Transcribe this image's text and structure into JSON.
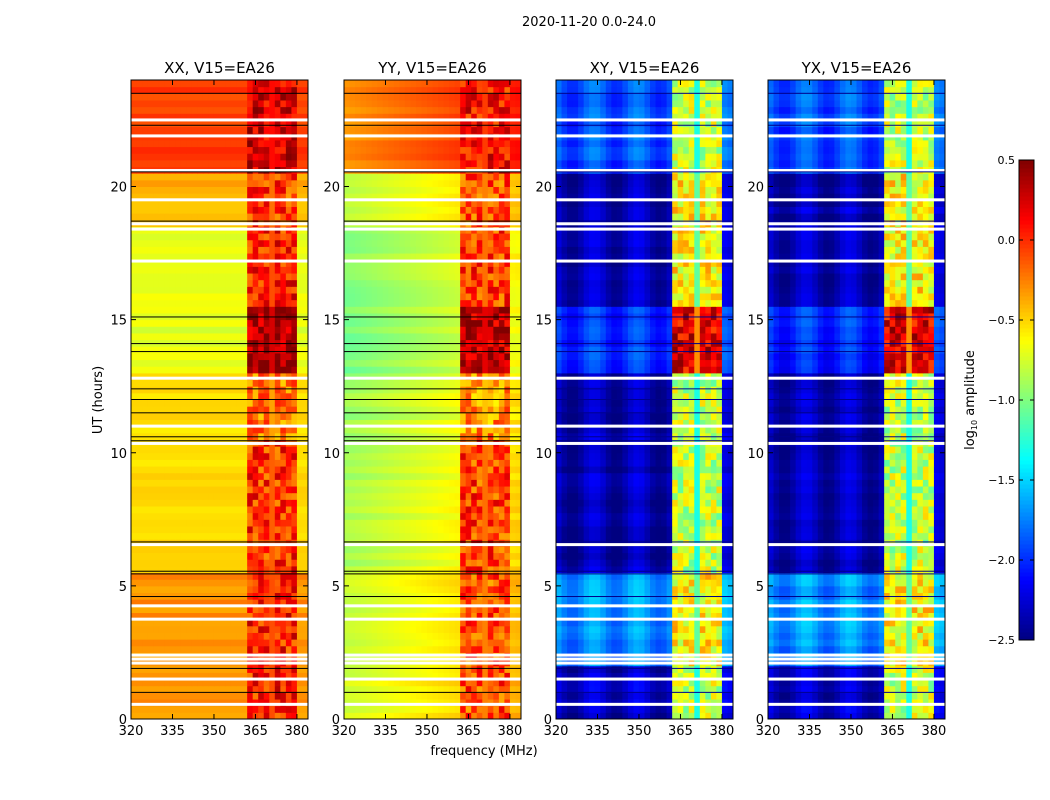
{
  "chart_data": {
    "type": "heatmap",
    "title": "2020-11-20 0.0-24.0",
    "xlabel": "frequency (MHz)",
    "ylabel": "UT (hours)",
    "xlim": [
      320,
      384
    ],
    "ylim": [
      0,
      24
    ],
    "xticks": [
      "320",
      "335",
      "350",
      "365",
      "380"
    ],
    "xtick_values": [
      320,
      335,
      350,
      365,
      380
    ],
    "yticks": [
      "0",
      "5",
      "10",
      "15",
      "20"
    ],
    "ytick_values": [
      0,
      5,
      10,
      15,
      20
    ],
    "colorbar": {
      "label": "log10 amplitude",
      "label_base": "log",
      "label_sub": "10",
      "label_rest": " amplitude",
      "range": [
        -2.5,
        0.5
      ],
      "ticks": [
        "0.5",
        "0.0",
        "−0.5",
        "−1.0",
        "−1.5",
        "−2.0",
        "−2.5"
      ],
      "tick_values": [
        0.5,
        0.0,
        -0.5,
        -1.0,
        -1.5,
        -2.0,
        -2.5
      ],
      "colormap": "jet"
    },
    "rfi_columns_mhz": [
      [
        361.5,
        365.5
      ],
      [
        366.5,
        370.5
      ],
      [
        371.5,
        375.5
      ],
      [
        376.5,
        380.5
      ]
    ],
    "flagged_white_ut": [
      0.55,
      1.5,
      2.1,
      2.25,
      2.4,
      3.75,
      4.25,
      6.55,
      10.35,
      11.0,
      12.8,
      17.2,
      18.4,
      18.6,
      19.5,
      20.6,
      21.9,
      22.5
    ],
    "black_line_ut": [
      1.0,
      1.9,
      4.6,
      5.45,
      5.55,
      6.65,
      10.45,
      10.6,
      11.5,
      12.0,
      12.4,
      13.8,
      14.1,
      15.1,
      18.7,
      20.55,
      22.3,
      23.5
    ],
    "panels": [
      {
        "title": "XX, V15=EA26",
        "kind": "parallel",
        "segments": [
          {
            "ut": [
              0,
              5.5
            ],
            "base": -0.3,
            "band": 0.05
          },
          {
            "ut": [
              5.5,
              10.5
            ],
            "base": -0.5,
            "band": 0.0
          },
          {
            "ut": [
              10.5,
              13
            ],
            "base": -0.55,
            "band": -0.2
          },
          {
            "ut": [
              13,
              15.5
            ],
            "base": -0.7,
            "band": 0.4
          },
          {
            "ut": [
              15.5,
              18.5
            ],
            "base": -0.7,
            "band": 0.05
          },
          {
            "ut": [
              18.5,
              20.5
            ],
            "base": -0.4,
            "band": -0.05
          },
          {
            "ut": [
              20.5,
              24
            ],
            "base": -0.05,
            "band": 0.25
          }
        ]
      },
      {
        "title": "YY, V15=EA26",
        "kind": "parallel",
        "segments": [
          {
            "ut": [
              0,
              5.5
            ],
            "base": -0.6,
            "band": -0.1
          },
          {
            "ut": [
              5.5,
              10.5
            ],
            "base": -0.7,
            "band": -0.05
          },
          {
            "ut": [
              10.5,
              13
            ],
            "base": -0.75,
            "band": -0.3
          },
          {
            "ut": [
              13,
              15.5
            ],
            "base": -0.85,
            "band": 0.35
          },
          {
            "ut": [
              15.5,
              18.5
            ],
            "base": -0.8,
            "band": -0.05
          },
          {
            "ut": [
              18.5,
              20.5
            ],
            "base": -0.6,
            "band": -0.1
          },
          {
            "ut": [
              20.5,
              24
            ],
            "base": -0.15,
            "band": 0.1
          }
        ]
      },
      {
        "title": "XY, V15=EA26",
        "kind": "cross",
        "segments": [
          {
            "ut": [
              0,
              2
            ],
            "base": -2.3,
            "band": -0.8
          },
          {
            "ut": [
              2,
              5.5
            ],
            "base": -1.7,
            "band": -0.6
          },
          {
            "ut": [
              5.5,
              13
            ],
            "base": -2.35,
            "band": -0.8
          },
          {
            "ut": [
              13,
              15.5
            ],
            "base": -2.0,
            "band": 0.2
          },
          {
            "ut": [
              15.5,
              20.5
            ],
            "base": -2.35,
            "band": -0.6
          },
          {
            "ut": [
              20.5,
              24
            ],
            "base": -1.9,
            "band": -0.8
          }
        ]
      },
      {
        "title": "YX, V15=EA26",
        "kind": "cross",
        "segments": [
          {
            "ut": [
              0,
              2
            ],
            "base": -2.3,
            "band": -0.8
          },
          {
            "ut": [
              2,
              5.5
            ],
            "base": -1.7,
            "band": -0.6
          },
          {
            "ut": [
              5.5,
              13
            ],
            "base": -2.35,
            "band": -0.8
          },
          {
            "ut": [
              13,
              15.5
            ],
            "base": -2.0,
            "band": 0.2
          },
          {
            "ut": [
              15.5,
              20.5
            ],
            "base": -2.35,
            "band": -0.6
          },
          {
            "ut": [
              20.5,
              24
            ],
            "base": -1.9,
            "band": -0.8
          }
        ]
      }
    ]
  }
}
